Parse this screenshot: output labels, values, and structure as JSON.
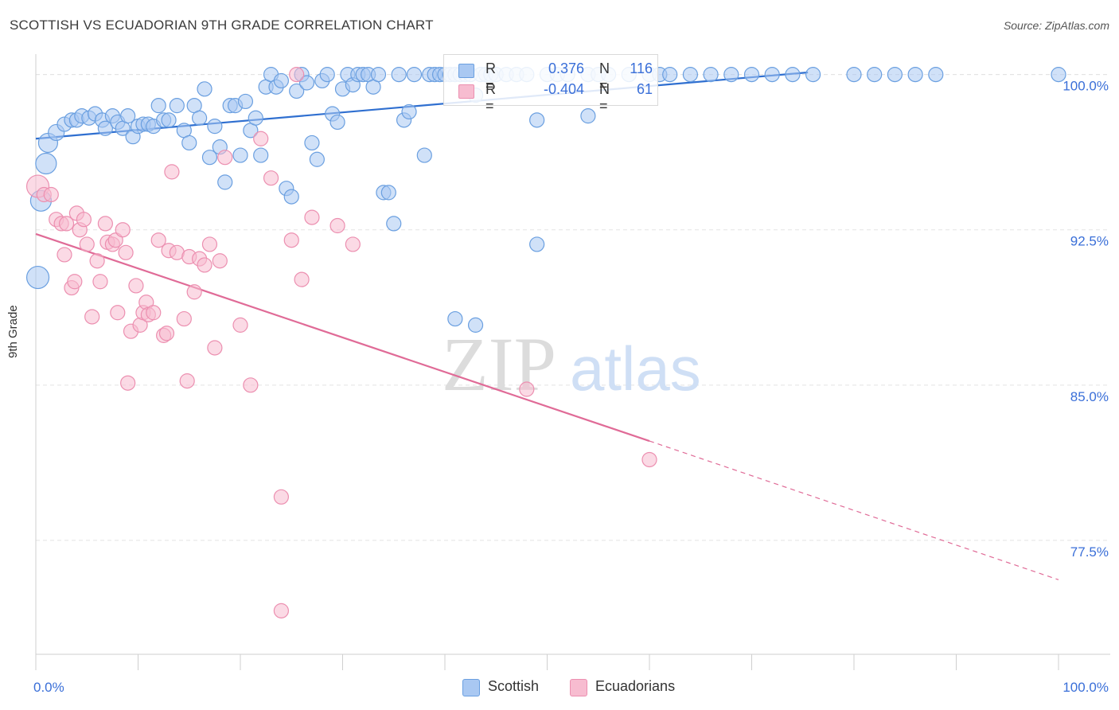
{
  "title": "SCOTTISH VS ECUADORIAN 9TH GRADE CORRELATION CHART",
  "source": "Source: ZipAtlas.com",
  "watermark": {
    "zip": "ZIP",
    "atlas": "atlas"
  },
  "colors": {
    "scottish_fill": "#a9c8f2",
    "scottish_stroke": "#6a9fe0",
    "scottish_line": "#2f6fd0",
    "ecuadorian_fill": "#f7bcd0",
    "ecuadorian_stroke": "#ec8fb0",
    "ecuadorian_line": "#e06b97",
    "axis_text": "#3a6fd8",
    "grid": "#e3e3e3"
  },
  "legend": {
    "rows": [
      {
        "r_label": "R =",
        "r_value": "0.376",
        "n_label": "N =",
        "n_value": "116"
      },
      {
        "r_label": "R =",
        "r_value": "-0.404",
        "n_label": "N =",
        "n_value": "61"
      }
    ]
  },
  "bottom_legend": [
    "Scottish",
    "Ecuadorians"
  ],
  "chart_data": {
    "type": "scatter",
    "xlabel": "",
    "ylabel": "9th Grade",
    "xlim": [
      0,
      100
    ],
    "ylim": [
      72.0,
      100.6
    ],
    "x_tick_labels": [
      "0.0%",
      "100.0%"
    ],
    "y_ticks": [
      77.5,
      85.0,
      92.5,
      100.0
    ],
    "y_tick_labels": [
      "77.5%",
      "85.0%",
      "92.5%",
      "100.0%"
    ],
    "grid": "horizontal dashed",
    "legend_position": "top-center",
    "series": [
      {
        "name": "Scottish",
        "trend": {
          "x": [
            0,
            75.5
          ],
          "y": [
            96.9,
            100.1
          ]
        },
        "points": [
          [
            0.2,
            90.2,
            14
          ],
          [
            0.5,
            93.9,
            13
          ],
          [
            1.0,
            95.7,
            13
          ],
          [
            1.2,
            96.7,
            12
          ],
          [
            2.0,
            97.2,
            10
          ],
          [
            2.8,
            97.6,
            9
          ],
          [
            3.5,
            97.8,
            9
          ],
          [
            4.0,
            97.8,
            9
          ],
          [
            4.5,
            98.0,
            9
          ],
          [
            5.2,
            97.9,
            9
          ],
          [
            5.8,
            98.1,
            9
          ],
          [
            6.5,
            97.8,
            9
          ],
          [
            6.8,
            97.4,
            9
          ],
          [
            7.5,
            98.0,
            9
          ],
          [
            8.0,
            97.7,
            9
          ],
          [
            8.5,
            97.4,
            9
          ],
          [
            9.0,
            98.0,
            9
          ],
          [
            9.5,
            97.0,
            9
          ],
          [
            10.0,
            97.5,
            9
          ],
          [
            10.5,
            97.6,
            9
          ],
          [
            11.0,
            97.6,
            9
          ],
          [
            11.5,
            97.5,
            9
          ],
          [
            12.0,
            98.5,
            9
          ],
          [
            12.5,
            97.8,
            9
          ],
          [
            13.0,
            97.8,
            9
          ],
          [
            13.8,
            98.5,
            9
          ],
          [
            14.5,
            97.3,
            9
          ],
          [
            15.0,
            96.7,
            9
          ],
          [
            15.5,
            98.5,
            9
          ],
          [
            16.0,
            97.9,
            9
          ],
          [
            16.5,
            99.3,
            9
          ],
          [
            17.0,
            96.0,
            9
          ],
          [
            17.5,
            97.5,
            9
          ],
          [
            18.0,
            96.5,
            9
          ],
          [
            18.5,
            94.8,
            9
          ],
          [
            19.0,
            98.5,
            9
          ],
          [
            19.5,
            98.5,
            9
          ],
          [
            20.0,
            96.1,
            9
          ],
          [
            20.5,
            98.7,
            9
          ],
          [
            21.0,
            97.3,
            9
          ],
          [
            21.5,
            97.9,
            9
          ],
          [
            22.0,
            96.1,
            9
          ],
          [
            22.5,
            99.4,
            9
          ],
          [
            23.0,
            100.0,
            9
          ],
          [
            23.5,
            99.4,
            9
          ],
          [
            24.0,
            99.7,
            9
          ],
          [
            24.5,
            94.5,
            9
          ],
          [
            25.0,
            94.1,
            9
          ],
          [
            25.5,
            99.2,
            9
          ],
          [
            26.0,
            100.0,
            9
          ],
          [
            26.5,
            99.6,
            9
          ],
          [
            27.0,
            96.7,
            9
          ],
          [
            27.5,
            95.9,
            9
          ],
          [
            28.0,
            99.7,
            9
          ],
          [
            28.5,
            100.0,
            9
          ],
          [
            29.0,
            98.1,
            9
          ],
          [
            29.5,
            97.7,
            9
          ],
          [
            30.0,
            99.3,
            9
          ],
          [
            30.5,
            100.0,
            9
          ],
          [
            31.0,
            99.5,
            9
          ],
          [
            31.5,
            100.0,
            9
          ],
          [
            32.0,
            100.0,
            9
          ],
          [
            32.5,
            100.0,
            9
          ],
          [
            33.0,
            99.4,
            9
          ],
          [
            33.5,
            100.0,
            9
          ],
          [
            34.0,
            94.3,
            9
          ],
          [
            34.5,
            94.3,
            9
          ],
          [
            35.0,
            92.8,
            9
          ],
          [
            35.5,
            100.0,
            9
          ],
          [
            36.0,
            97.8,
            9
          ],
          [
            36.5,
            98.2,
            9
          ],
          [
            37.0,
            100.0,
            9
          ],
          [
            38.0,
            96.1,
            9
          ],
          [
            38.5,
            100.0,
            9
          ],
          [
            39.0,
            100.0,
            9
          ],
          [
            39.5,
            100.0,
            9
          ],
          [
            40.0,
            100.0,
            9
          ],
          [
            40.5,
            100.0,
            9
          ],
          [
            41.0,
            100.0,
            9
          ],
          [
            41.5,
            100.0,
            9
          ],
          [
            42.0,
            100.0,
            9
          ],
          [
            42.5,
            100.0,
            9
          ],
          [
            43.0,
            99.0,
            9
          ],
          [
            43.5,
            100.0,
            9
          ],
          [
            44.0,
            100.0,
            9
          ],
          [
            44.5,
            100.0,
            9
          ],
          [
            45.0,
            100.0,
            9
          ],
          [
            46.0,
            100.0,
            9
          ],
          [
            47.0,
            100.0,
            9
          ],
          [
            48.0,
            100.0,
            9
          ],
          [
            50.0,
            100.0,
            9
          ],
          [
            51.0,
            100.0,
            9
          ],
          [
            52.0,
            100.0,
            9
          ],
          [
            54.0,
            100.0,
            9
          ],
          [
            55.0,
            100.0,
            9
          ],
          [
            56.0,
            100.0,
            9
          ],
          [
            58.0,
            100.0,
            9
          ],
          [
            60.0,
            100.0,
            9
          ],
          [
            61.0,
            100.0,
            9
          ],
          [
            62.0,
            100.0,
            9
          ],
          [
            64.0,
            100.0,
            9
          ],
          [
            66.0,
            100.0,
            9
          ],
          [
            68.0,
            100.0,
            9
          ],
          [
            70.0,
            100.0,
            9
          ],
          [
            72.0,
            100.0,
            9
          ],
          [
            74.0,
            100.0,
            9
          ],
          [
            76.0,
            100.0,
            9
          ],
          [
            80.0,
            100.0,
            9
          ],
          [
            82.0,
            100.0,
            9
          ],
          [
            84.0,
            100.0,
            9
          ],
          [
            86.0,
            100.0,
            9
          ],
          [
            88.0,
            100.0,
            9
          ],
          [
            100.0,
            100.0,
            9
          ],
          [
            41.0,
            88.2,
            9
          ],
          [
            43.0,
            87.9,
            9
          ],
          [
            49.0,
            91.8,
            9
          ],
          [
            49.0,
            97.8,
            9
          ],
          [
            54.0,
            98.0,
            9
          ]
        ]
      },
      {
        "name": "Ecuadorians",
        "trend": {
          "x": [
            0,
            60.0
          ],
          "y": [
            92.3,
            82.3
          ]
        },
        "trend_dashed": {
          "x": [
            60.0,
            100.0
          ],
          "y": [
            82.3,
            75.6
          ]
        },
        "points": [
          [
            0.2,
            94.6,
            14
          ],
          [
            0.8,
            94.2,
            9
          ],
          [
            1.5,
            94.2,
            9
          ],
          [
            2.0,
            93.0,
            9
          ],
          [
            2.5,
            92.8,
            9
          ],
          [
            2.8,
            91.3,
            9
          ],
          [
            3.0,
            92.8,
            9
          ],
          [
            3.5,
            89.7,
            9
          ],
          [
            3.8,
            90.0,
            9
          ],
          [
            4.0,
            93.3,
            9
          ],
          [
            4.3,
            92.5,
            9
          ],
          [
            4.7,
            93.0,
            9
          ],
          [
            5.0,
            91.8,
            9
          ],
          [
            5.5,
            88.3,
            9
          ],
          [
            6.0,
            91.0,
            9
          ],
          [
            6.3,
            90.0,
            9
          ],
          [
            6.8,
            92.8,
            9
          ],
          [
            7.0,
            91.9,
            9
          ],
          [
            7.5,
            91.8,
            9
          ],
          [
            7.8,
            92.0,
            9
          ],
          [
            8.0,
            88.5,
            9
          ],
          [
            8.5,
            92.5,
            9
          ],
          [
            8.8,
            91.4,
            9
          ],
          [
            9.0,
            85.1,
            9
          ],
          [
            9.3,
            87.6,
            9
          ],
          [
            9.8,
            89.8,
            9
          ],
          [
            10.2,
            87.9,
            9
          ],
          [
            10.5,
            88.5,
            9
          ],
          [
            10.8,
            89.0,
            9
          ],
          [
            11.0,
            88.4,
            9
          ],
          [
            11.5,
            88.5,
            9
          ],
          [
            12.0,
            92.0,
            9
          ],
          [
            12.5,
            87.4,
            9
          ],
          [
            12.8,
            87.5,
            9
          ],
          [
            13.0,
            91.5,
            9
          ],
          [
            13.3,
            95.3,
            9
          ],
          [
            13.8,
            91.4,
            9
          ],
          [
            14.5,
            88.2,
            9
          ],
          [
            14.8,
            85.2,
            9
          ],
          [
            15.0,
            91.2,
            9
          ],
          [
            15.5,
            89.5,
            9
          ],
          [
            16.0,
            91.1,
            9
          ],
          [
            16.5,
            90.8,
            9
          ],
          [
            17.0,
            91.8,
            9
          ],
          [
            17.5,
            86.8,
            9
          ],
          [
            18.0,
            91.0,
            9
          ],
          [
            18.5,
            96.0,
            9
          ],
          [
            20.0,
            87.9,
            9
          ],
          [
            21.0,
            85.0,
            9
          ],
          [
            22.0,
            96.9,
            9
          ],
          [
            23.0,
            95.0,
            9
          ],
          [
            25.0,
            92.0,
            9
          ],
          [
            25.5,
            100.0,
            9
          ],
          [
            26.0,
            90.1,
            9
          ],
          [
            27.0,
            93.1,
            9
          ],
          [
            29.5,
            92.7,
            9
          ],
          [
            31.0,
            91.8,
            9
          ],
          [
            24.0,
            79.6,
            9
          ],
          [
            24.0,
            74.1,
            9
          ],
          [
            48.0,
            84.8,
            9
          ],
          [
            60.0,
            81.4,
            9
          ]
        ]
      }
    ]
  }
}
